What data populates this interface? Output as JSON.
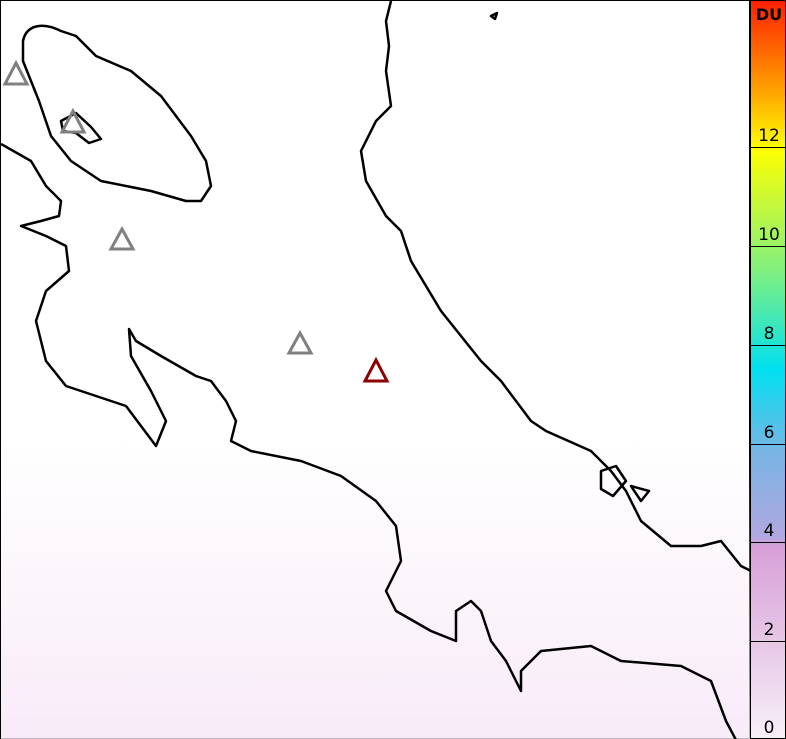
{
  "colorbar": {
    "unit": "DU",
    "min": 0,
    "max": 15,
    "ticks": [
      "0",
      "2",
      "4",
      "6",
      "8",
      "10",
      "12"
    ],
    "colors": [
      "#f8f0f8",
      "#e6c6e6",
      "#d8a0d8",
      "#b0a8e0",
      "#7ab4e4",
      "#00e0f0",
      "#80f080",
      "#ffff00",
      "#ffa000",
      "#ff2000"
    ]
  },
  "volcanoes": [
    {
      "status": "inactive",
      "color": "#808080"
    },
    {
      "status": "inactive",
      "color": "#808080"
    },
    {
      "status": "inactive",
      "color": "#808080"
    },
    {
      "status": "inactive",
      "color": "#808080"
    },
    {
      "status": "active",
      "color": "#8b0000"
    }
  ]
}
